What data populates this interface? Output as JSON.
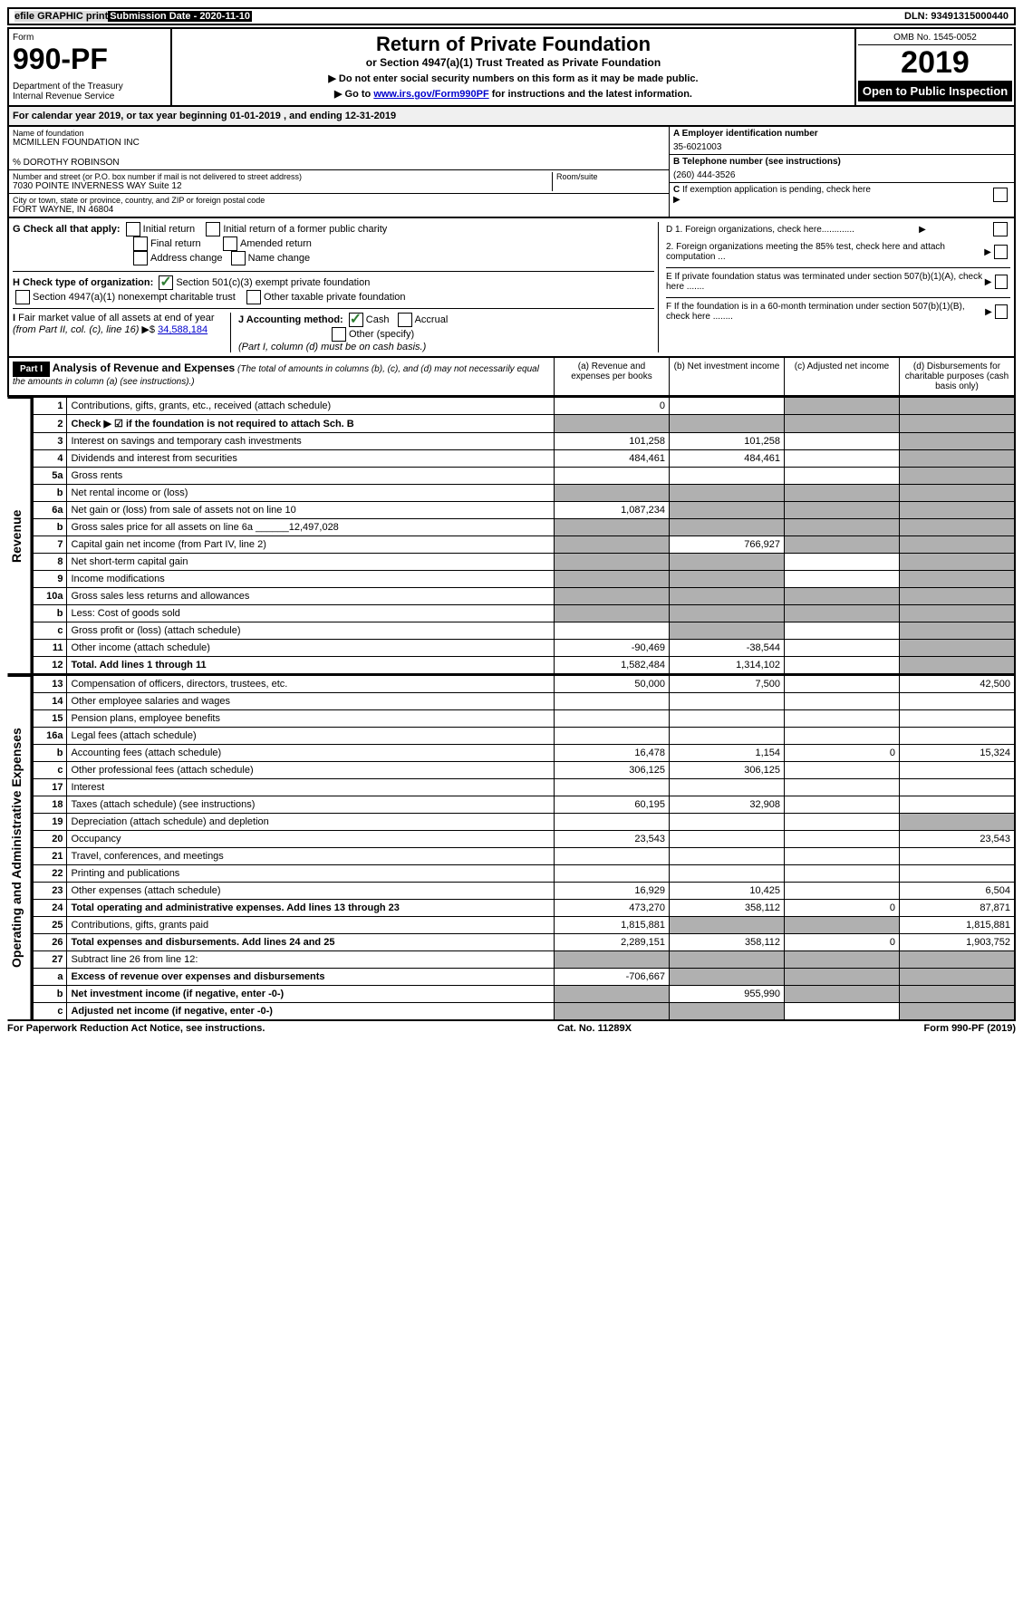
{
  "top": {
    "efile": "efile GRAPHIC print",
    "subdate": "Submission Date - 2020-11-10",
    "dln": "DLN: 93491315000440"
  },
  "header": {
    "form_label": "Form",
    "form_number": "990-PF",
    "dept": "Department of the Treasury\nInternal Revenue Service",
    "title": "Return of Private Foundation",
    "subtitle": "or Section 4947(a)(1) Trust Treated as Private Foundation",
    "note1": "▶ Do not enter social security numbers on this form as it may be made public.",
    "note2_prefix": "▶ Go to ",
    "note2_link": "www.irs.gov/Form990PF",
    "note2_suffix": " for instructions and the latest information.",
    "omb": "OMB No. 1545-0052",
    "year": "2019",
    "open": "Open to Public Inspection"
  },
  "calyear": "For calendar year 2019, or tax year beginning 01-01-2019                                , and ending 12-31-2019",
  "info": {
    "name_label": "Name of foundation",
    "name": "MCMILLEN FOUNDATION INC",
    "care_of": "% DOROTHY ROBINSON",
    "addr_label": "Number and street (or P.O. box number if mail is not delivered to street address)",
    "addr": "7030 POINTE INVERNESS WAY Suite 12",
    "room_label": "Room/suite",
    "city_label": "City or town, state or province, country, and ZIP or foreign postal code",
    "city": "FORT WAYNE, IN  46804",
    "ein_label": "A Employer identification number",
    "ein": "35-6021003",
    "phone_label": "B Telephone number (see instructions)",
    "phone": "(260) 444-3526",
    "c_label": "C If exemption application is pending, check here"
  },
  "g": {
    "label": "G Check all that apply:",
    "opts": [
      "Initial return",
      "Initial return of a former public charity",
      "Final return",
      "Amended return",
      "Address change",
      "Name change"
    ]
  },
  "h": {
    "label": "H Check type of organization:",
    "opt1": "Section 501(c)(3) exempt private foundation",
    "opt2": "Section 4947(a)(1) nonexempt charitable trust",
    "opt3": "Other taxable private foundation"
  },
  "i": {
    "label": "I Fair market value of all assets at end of year (from Part II, col. (c), line 16) ▶$",
    "value": "34,588,184"
  },
  "j": {
    "label": "J Accounting method:",
    "cash": "Cash",
    "accrual": "Accrual",
    "other": "Other (specify)",
    "note": "(Part I, column (d) must be on cash basis.)"
  },
  "d": {
    "d1": "D 1. Foreign organizations, check here.............",
    "d2": "2. Foreign organizations meeting the 85% test, check here and attach computation ...",
    "e": "E  If private foundation status was terminated under section 507(b)(1)(A), check here .......",
    "f": "F  If the foundation is in a 60-month termination under section 507(b)(1)(B), check here ........"
  },
  "part1": {
    "label": "Part I",
    "title": "Analysis of Revenue and Expenses",
    "note": "(The total of amounts in columns (b), (c), and (d) may not necessarily equal the amounts in column (a) (see instructions).)",
    "col_a": "(a) Revenue and expenses per books",
    "col_b": "(b) Net investment income",
    "col_c": "(c) Adjusted net income",
    "col_d": "(d) Disbursements for charitable purposes (cash basis only)"
  },
  "revenue_label": "Revenue",
  "expenses_label": "Operating and Administrative Expenses",
  "rows": [
    {
      "n": "1",
      "desc": "Contributions, gifts, grants, etc., received (attach schedule)",
      "a": "0",
      "b": "",
      "c": "s",
      "d": "s"
    },
    {
      "n": "2",
      "desc": "Check ▶ ☑ if the foundation is not required to attach Sch. B",
      "a": "s",
      "b": "s",
      "c": "s",
      "d": "s",
      "bold": true
    },
    {
      "n": "3",
      "desc": "Interest on savings and temporary cash investments",
      "a": "101,258",
      "b": "101,258",
      "c": "",
      "d": "s"
    },
    {
      "n": "4",
      "desc": "Dividends and interest from securities",
      "a": "484,461",
      "b": "484,461",
      "c": "",
      "d": "s"
    },
    {
      "n": "5a",
      "desc": "Gross rents",
      "a": "",
      "b": "",
      "c": "",
      "d": "s"
    },
    {
      "n": "b",
      "desc": "Net rental income or (loss)",
      "a": "s",
      "b": "s",
      "c": "s",
      "d": "s"
    },
    {
      "n": "6a",
      "desc": "Net gain or (loss) from sale of assets not on line 10",
      "a": "1,087,234",
      "b": "s",
      "c": "s",
      "d": "s"
    },
    {
      "n": "b",
      "desc": "Gross sales price for all assets on line 6a ______12,497,028",
      "a": "s",
      "b": "s",
      "c": "s",
      "d": "s"
    },
    {
      "n": "7",
      "desc": "Capital gain net income (from Part IV, line 2)",
      "a": "s",
      "b": "766,927",
      "c": "s",
      "d": "s"
    },
    {
      "n": "8",
      "desc": "Net short-term capital gain",
      "a": "s",
      "b": "s",
      "c": "",
      "d": "s"
    },
    {
      "n": "9",
      "desc": "Income modifications",
      "a": "s",
      "b": "s",
      "c": "",
      "d": "s"
    },
    {
      "n": "10a",
      "desc": "Gross sales less returns and allowances",
      "a": "s",
      "b": "s",
      "c": "s",
      "d": "s"
    },
    {
      "n": "b",
      "desc": "Less: Cost of goods sold",
      "a": "s",
      "b": "s",
      "c": "s",
      "d": "s"
    },
    {
      "n": "c",
      "desc": "Gross profit or (loss) (attach schedule)",
      "a": "",
      "b": "s",
      "c": "",
      "d": "s"
    },
    {
      "n": "11",
      "desc": "Other income (attach schedule)",
      "a": "-90,469",
      "b": "-38,544",
      "c": "",
      "d": "s"
    },
    {
      "n": "12",
      "desc": "Total. Add lines 1 through 11",
      "a": "1,582,484",
      "b": "1,314,102",
      "c": "",
      "d": "s",
      "bold": true
    }
  ],
  "exp_rows": [
    {
      "n": "13",
      "desc": "Compensation of officers, directors, trustees, etc.",
      "a": "50,000",
      "b": "7,500",
      "c": "",
      "d": "42,500"
    },
    {
      "n": "14",
      "desc": "Other employee salaries and wages",
      "a": "",
      "b": "",
      "c": "",
      "d": ""
    },
    {
      "n": "15",
      "desc": "Pension plans, employee benefits",
      "a": "",
      "b": "",
      "c": "",
      "d": ""
    },
    {
      "n": "16a",
      "desc": "Legal fees (attach schedule)",
      "a": "",
      "b": "",
      "c": "",
      "d": ""
    },
    {
      "n": "b",
      "desc": "Accounting fees (attach schedule)",
      "a": "16,478",
      "b": "1,154",
      "c": "0",
      "d": "15,324"
    },
    {
      "n": "c",
      "desc": "Other professional fees (attach schedule)",
      "a": "306,125",
      "b": "306,125",
      "c": "",
      "d": ""
    },
    {
      "n": "17",
      "desc": "Interest",
      "a": "",
      "b": "",
      "c": "",
      "d": ""
    },
    {
      "n": "18",
      "desc": "Taxes (attach schedule) (see instructions)",
      "a": "60,195",
      "b": "32,908",
      "c": "",
      "d": ""
    },
    {
      "n": "19",
      "desc": "Depreciation (attach schedule) and depletion",
      "a": "",
      "b": "",
      "c": "",
      "d": "s"
    },
    {
      "n": "20",
      "desc": "Occupancy",
      "a": "23,543",
      "b": "",
      "c": "",
      "d": "23,543"
    },
    {
      "n": "21",
      "desc": "Travel, conferences, and meetings",
      "a": "",
      "b": "",
      "c": "",
      "d": ""
    },
    {
      "n": "22",
      "desc": "Printing and publications",
      "a": "",
      "b": "",
      "c": "",
      "d": ""
    },
    {
      "n": "23",
      "desc": "Other expenses (attach schedule)",
      "a": "16,929",
      "b": "10,425",
      "c": "",
      "d": "6,504"
    },
    {
      "n": "24",
      "desc": "Total operating and administrative expenses. Add lines 13 through 23",
      "a": "473,270",
      "b": "358,112",
      "c": "0",
      "d": "87,871",
      "bold": true
    },
    {
      "n": "25",
      "desc": "Contributions, gifts, grants paid",
      "a": "1,815,881",
      "b": "s",
      "c": "s",
      "d": "1,815,881"
    },
    {
      "n": "26",
      "desc": "Total expenses and disbursements. Add lines 24 and 25",
      "a": "2,289,151",
      "b": "358,112",
      "c": "0",
      "d": "1,903,752",
      "bold": true
    },
    {
      "n": "27",
      "desc": "Subtract line 26 from line 12:",
      "a": "s",
      "b": "s",
      "c": "s",
      "d": "s"
    },
    {
      "n": "a",
      "desc": "Excess of revenue over expenses and disbursements",
      "a": "-706,667",
      "b": "s",
      "c": "s",
      "d": "s",
      "bold": true
    },
    {
      "n": "b",
      "desc": "Net investment income (if negative, enter -0-)",
      "a": "s",
      "b": "955,990",
      "c": "s",
      "d": "s",
      "bold": true
    },
    {
      "n": "c",
      "desc": "Adjusted net income (if negative, enter -0-)",
      "a": "s",
      "b": "s",
      "c": "",
      "d": "s",
      "bold": true
    }
  ],
  "footer": {
    "left": "For Paperwork Reduction Act Notice, see instructions.",
    "center": "Cat. No. 11289X",
    "right": "Form 990-PF (2019)"
  }
}
